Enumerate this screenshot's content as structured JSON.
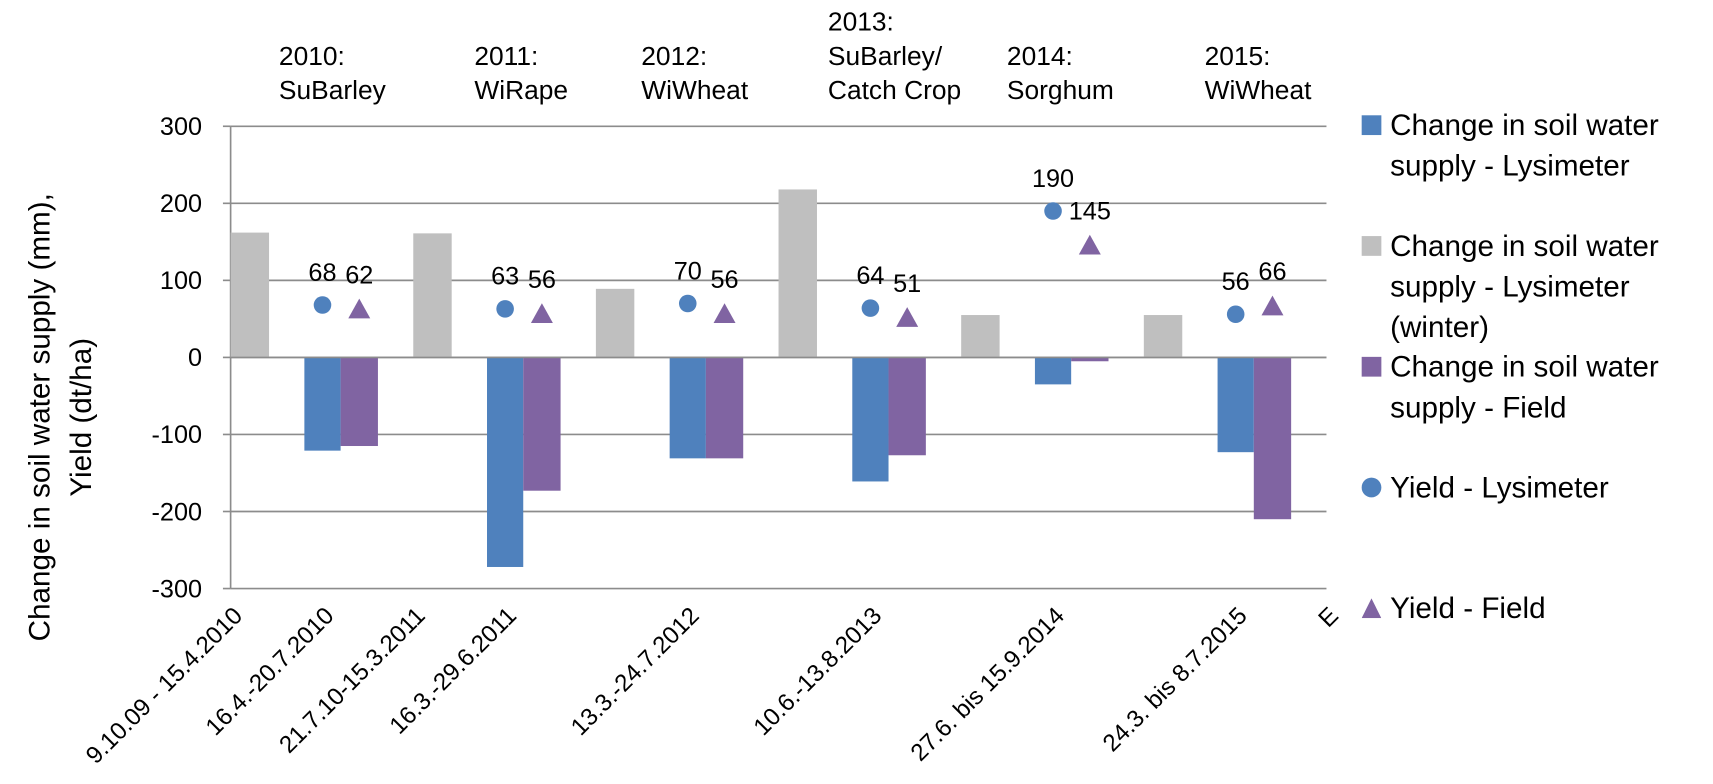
{
  "chart_data": {
    "type": "bar",
    "y_label": "Change in soil water supply (mm), Yield (dt/ha)",
    "annotations": [
      [
        "2010:",
        "SuBarley"
      ],
      [
        "2011:",
        "WiRape"
      ],
      [
        "2012:",
        "WiWheat"
      ],
      [
        "2013:",
        "SuBarley/",
        "Catch Crop"
      ],
      [
        "2014:",
        "Sorghum"
      ],
      [
        "2015:",
        "WiWheat"
      ]
    ],
    "categories": [
      "9.10.09 - 15.4.2010",
      "16.4.-20.7.2010",
      "21.7.10-15.3.2011",
      "16.3.-29.6.2011",
      null,
      "13.3.-24.7.2012",
      null,
      "10.6.-13.8.2013",
      null,
      "27.6. bis 15.9.2014",
      null,
      "24.3. bis 8.7.2015",
      "E"
    ],
    "series": [
      {
        "name": "Change in soil water supply - Lysimeter",
        "color": "#4f81bd",
        "marker": "bar",
        "values": [
          null,
          -121,
          null,
          -272,
          null,
          -131,
          null,
          -161,
          null,
          -35,
          null,
          -123,
          null
        ]
      },
      {
        "name": "Change in soil water supply - Lysimeter (winter)",
        "color": "#bfbfbf",
        "marker": "bar",
        "values": [
          162,
          null,
          161,
          null,
          89,
          null,
          218,
          null,
          55,
          null,
          55,
          null,
          null
        ]
      },
      {
        "name": "Change in soil water supply - Field",
        "color": "#8064a2",
        "marker": "bar",
        "values": [
          null,
          -115,
          null,
          -173,
          null,
          -131,
          null,
          -127,
          null,
          -5,
          null,
          -210,
          null
        ]
      },
      {
        "name": "Yield - Lysimeter",
        "color": "#4f81bd",
        "marker": "circle",
        "values": [
          null,
          68,
          null,
          63,
          null,
          70,
          null,
          64,
          null,
          190,
          null,
          56,
          null
        ]
      },
      {
        "name": "Yield - Field",
        "color": "#8064a2",
        "marker": "triangle",
        "values": [
          null,
          62,
          null,
          56,
          null,
          56,
          null,
          51,
          null,
          145,
          null,
          66,
          null
        ]
      }
    ],
    "ylim": [
      -300,
      300
    ],
    "yticks": [
      -300,
      -200,
      -100,
      0,
      100,
      200,
      300
    ],
    "grid": true
  }
}
